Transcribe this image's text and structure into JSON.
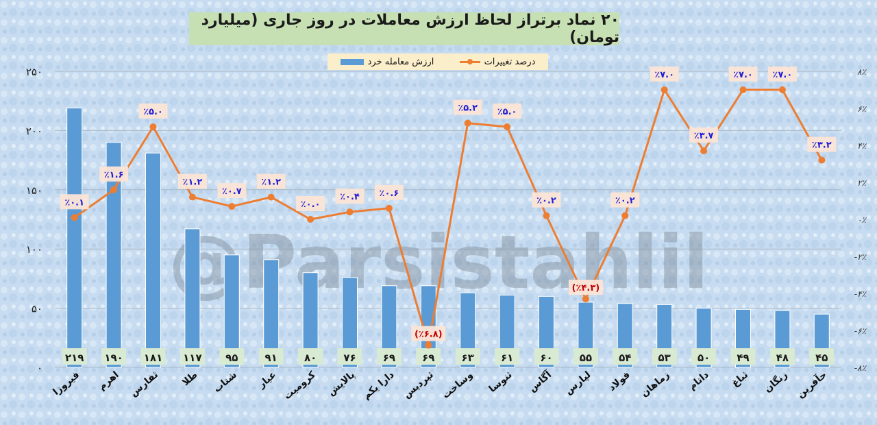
{
  "title": "۲۰ نماد برتراز لحاظ ارزش معاملات در روز جاری (میلیارد تومان)",
  "watermark": "@Parsistahlil",
  "colors": {
    "bar": "#5b9bd5",
    "line": "#ed7d31",
    "pct_label": "#1f1fd6",
    "neg_label": "#c00000"
  },
  "chart_data": {
    "type": "bar",
    "title": "۲۰ نماد برتراز لحاظ ارزش معاملات در روز جاری (میلیارد تومان)",
    "categories": [
      "فیروزا",
      "اهرم",
      "ثفارس",
      "طلا",
      "شتاب",
      "عیار",
      "کرومیت",
      "پالایش",
      "دارا یکم",
      "ثپردیس",
      "وساخت",
      "ثنوسا",
      "آگاس",
      "لپارس",
      "فولاد",
      "زماهان",
      "داتام",
      "ثباغ",
      "زنگان",
      "حآفرین"
    ],
    "series": [
      {
        "name": "ارزش معامله خرد",
        "type": "bar",
        "axis": "left",
        "values": [
          219,
          190,
          181,
          117,
          95,
          91,
          80,
          76,
          69,
          69,
          63,
          61,
          60,
          55,
          54,
          53,
          50,
          49,
          48,
          45
        ],
        "labels": [
          "۲۱۹",
          "۱۹۰",
          "۱۸۱",
          "۱۱۷",
          "۹۵",
          "۹۱",
          "۸۰",
          "۷۶",
          "۶۹",
          "۶۹",
          "۶۳",
          "۶۱",
          "۶۰",
          "۵۵",
          "۵۴",
          "۵۳",
          "۵۰",
          "۴۹",
          "۴۸",
          "۴۵"
        ]
      },
      {
        "name": "درصد تغییرات",
        "type": "line",
        "axis": "right",
        "values": [
          0.1,
          1.6,
          5.0,
          1.2,
          0.7,
          1.2,
          0.0,
          0.4,
          0.6,
          -6.8,
          5.2,
          5.0,
          0.2,
          -4.3,
          0.2,
          7.0,
          3.7,
          7.0,
          7.0,
          3.2
        ],
        "labels": [
          "٪۰.۱",
          "٪۱.۶",
          "٪۵.۰",
          "٪۱.۲",
          "٪۰.۷",
          "٪۱.۲",
          "٪۰.۰",
          "٪۰.۴",
          "٪۰.۶",
          "(٪۶.۸)",
          "٪۵.۲",
          "٪۵.۰",
          "٪۰.۲",
          "(٪۴.۳)",
          "٪۰.۲",
          "٪۷.۰",
          "٪۳.۷",
          "٪۷.۰",
          "٪۷.۰",
          "٪۳.۲"
        ]
      }
    ],
    "ylim": [
      0,
      250
    ],
    "y_ticks": [
      0,
      50,
      100,
      150,
      200,
      250
    ],
    "y_tick_labels": [
      "۰",
      "۵۰",
      "۱۰۰",
      "۱۵۰",
      "۲۰۰",
      "۲۵۰"
    ],
    "y2lim": [
      -8,
      8
    ],
    "y2_ticks": [
      8,
      6,
      4,
      2,
      0,
      -2,
      -4,
      -6,
      -8
    ],
    "y2_tick_labels": [
      "۸٪",
      "۶٪",
      "۴٪",
      "۲٪",
      "۰٪",
      "-۲٪",
      "-۴٪",
      "-۶٪",
      "-۸٪"
    ],
    "grid": true,
    "legend": "top-center"
  }
}
